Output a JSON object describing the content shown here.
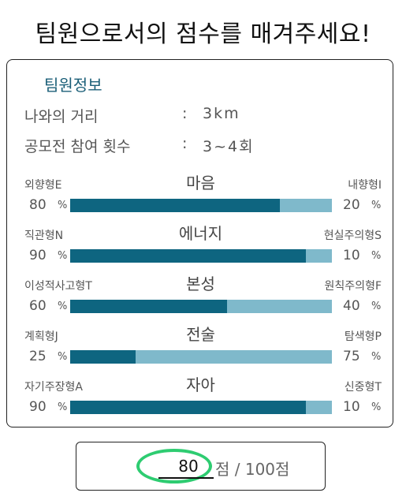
{
  "title": "팀원으로서의 점수를 매겨주세요!",
  "card": {
    "section_title": "팀원정보",
    "info": [
      {
        "label": "나와의 거리",
        "colon": ":",
        "value": "3km"
      },
      {
        "label": "공모전 참여 횟수",
        "colon": ":",
        "value": "3~4회"
      }
    ],
    "traits": [
      {
        "center": "마음",
        "left_label": "외향형E",
        "right_label": "내향형I",
        "left_pct": "80",
        "right_pct": "20",
        "pct_sign": "%",
        "fill": 80
      },
      {
        "center": "에너지",
        "left_label": "직관형N",
        "right_label": "현실주의형S",
        "left_pct": "90",
        "right_pct": "10",
        "pct_sign": "%",
        "fill": 90
      },
      {
        "center": "본성",
        "left_label": "이성적사고형T",
        "right_label": "원칙주의형F",
        "left_pct": "60",
        "right_pct": "40",
        "pct_sign": "%",
        "fill": 60
      },
      {
        "center": "전술",
        "left_label": "계획형J",
        "right_label": "탐색형P",
        "left_pct": "25",
        "right_pct": "75",
        "pct_sign": "%",
        "fill": 25
      },
      {
        "center": "자아",
        "left_label": "자기주장형A",
        "right_label": "신중형T",
        "left_pct": "90",
        "right_pct": "10",
        "pct_sign": "%",
        "fill": 90
      }
    ]
  },
  "score": {
    "value": "80",
    "suffix": "점 / 100점"
  },
  "colors": {
    "bar_fill": "#0e6580",
    "bar_track": "#7fb9cb",
    "section_title": "#1b5f78",
    "highlight": "#2ecc71"
  }
}
